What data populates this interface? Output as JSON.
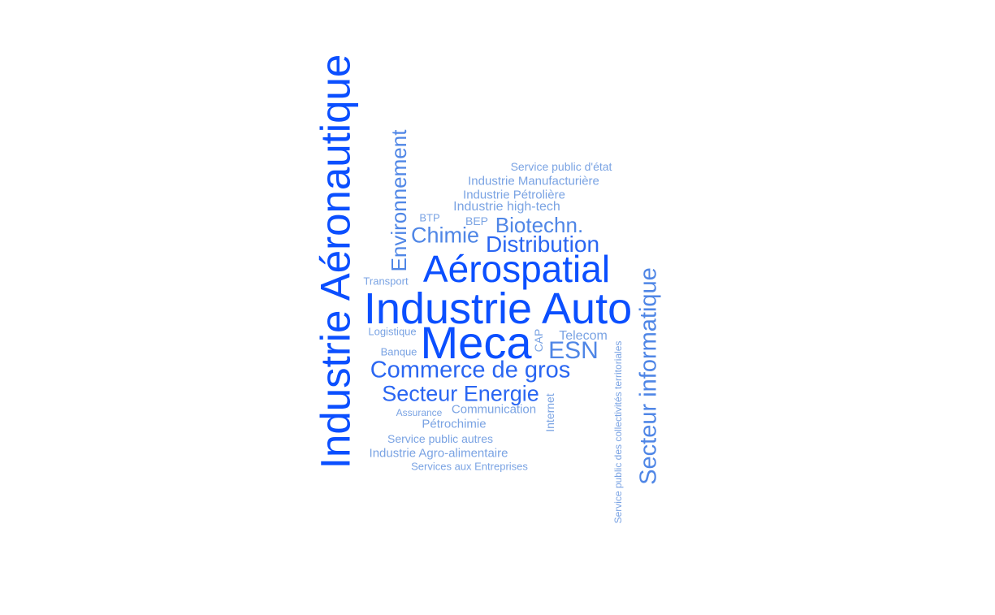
{
  "colors": {
    "tier1": "#0b4fff",
    "tier2": "#2a66f2",
    "tier3": "#4f86e6",
    "tier4": "#7aa3e3"
  },
  "words": {
    "aero": "Industrie Aéronautique",
    "auto": "Industrie Auto",
    "meca": "Meca",
    "aerospatial": "Aérospatial",
    "secinfo": "Secteur informatique",
    "envir": "Environnement",
    "commerce": "Commerce de gros",
    "energie": "Secteur Energie",
    "distrib": "Distribution",
    "chimie": "Chimie",
    "biotech": "Biotechn.",
    "esn": "ESN",
    "telecom": "Telecom",
    "hightech": "Industrie high-tech",
    "petroliere": "Industrie Pétrolière",
    "manuf": "Industrie Manufacturière",
    "etat": "Service public d'état",
    "btp": "BTP",
    "bep": "BEP",
    "transport": "Transport",
    "logistique": "Logistique",
    "banque": "Banque",
    "cap": "CAP",
    "internet": "Internet",
    "assurance": "Assurance",
    "communication": "Communication",
    "petrochimie": "Pétrochimie",
    "publicautres": "Service public autres",
    "agro": "Industrie Agro-alimentaire",
    "services": "Services aux Entreprises",
    "collectivites": "Service public des collectivités territoriales"
  },
  "word_tiers": {
    "aero": "tier1",
    "auto": "tier1",
    "meca": "tier1",
    "aerospatial": "tier1",
    "secinfo": "tier3",
    "envir": "tier3",
    "commerce": "tier2",
    "energie": "tier2",
    "distrib": "tier2",
    "chimie": "tier3",
    "biotech": "tier3",
    "esn": "tier3",
    "telecom": "tier4",
    "hightech": "tier4",
    "petroliere": "tier4",
    "manuf": "tier4",
    "etat": "tier4",
    "btp": "tier4",
    "bep": "tier4",
    "transport": "tier4",
    "logistique": "tier4",
    "banque": "tier4",
    "cap": "tier4",
    "internet": "tier4",
    "assurance": "tier4",
    "communication": "tier4",
    "petrochimie": "tier4",
    "publicautres": "tier4",
    "agro": "tier4",
    "services": "tier4",
    "collectivites": "tier4"
  }
}
